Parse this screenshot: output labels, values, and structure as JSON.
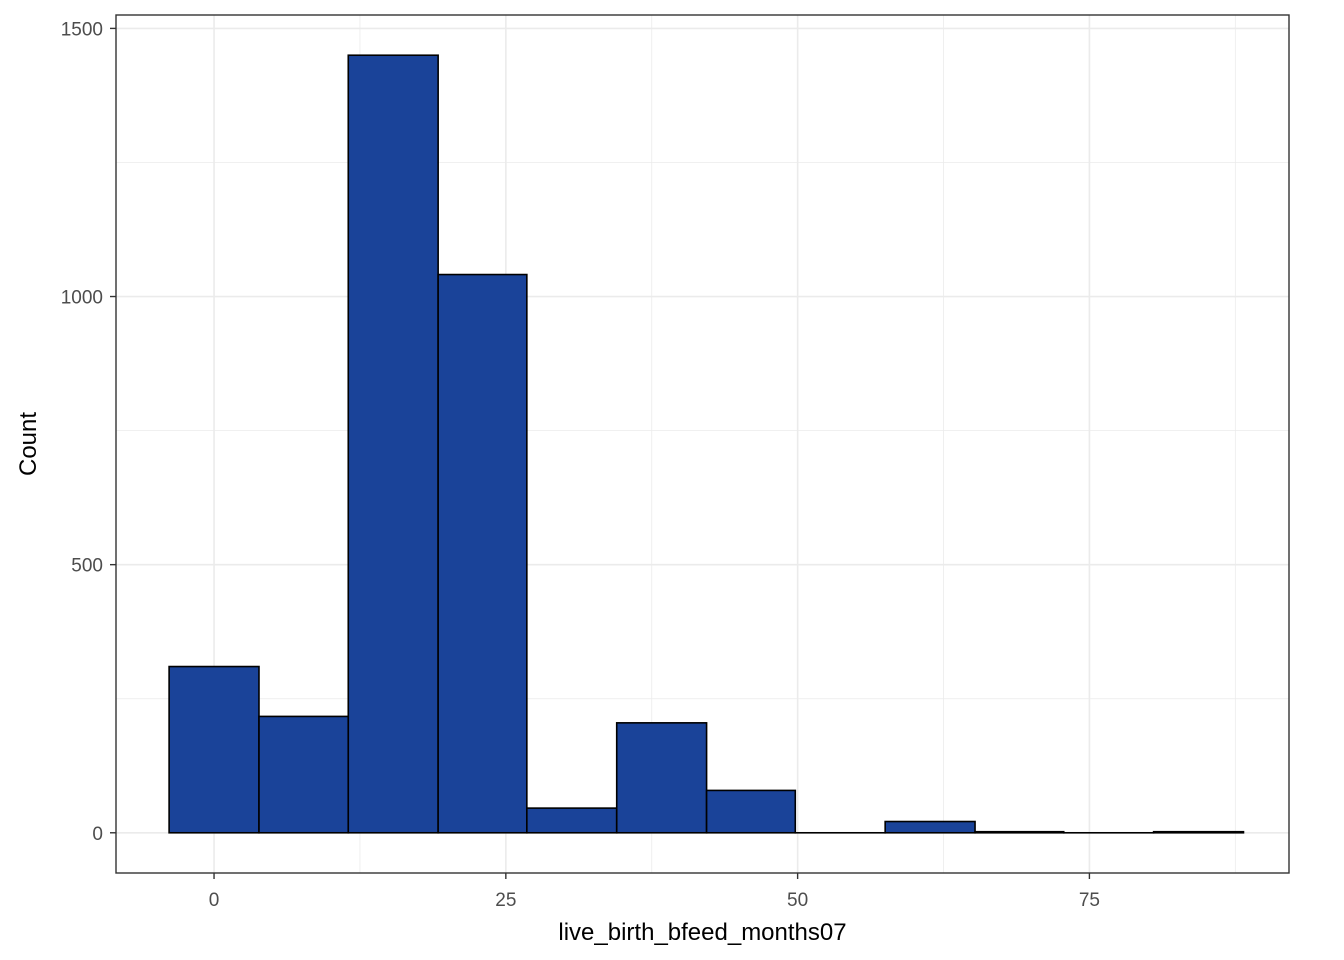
{
  "chart_data": {
    "type": "histogram",
    "xlabel": "live_birth_bfeed_months07",
    "ylabel": "Count",
    "xlim": [
      -8.4,
      92.1
    ],
    "ylim": [
      -75,
      1525
    ],
    "x_ticks": [
      0,
      25,
      50,
      75
    ],
    "x_minor_ticks": [
      12.5,
      37.5,
      62.5,
      87.5
    ],
    "y_ticks": [
      0,
      500,
      1000,
      1500
    ],
    "y_minor_ticks": [
      250,
      750,
      1250
    ],
    "bins": [
      {
        "x0": -3.85,
        "x1": 3.85,
        "count": 310
      },
      {
        "x0": 3.85,
        "x1": 11.5,
        "count": 217
      },
      {
        "x0": 11.5,
        "x1": 19.2,
        "count": 1450
      },
      {
        "x0": 19.2,
        "x1": 26.8,
        "count": 1041
      },
      {
        "x0": 26.8,
        "x1": 34.5,
        "count": 46
      },
      {
        "x0": 34.5,
        "x1": 42.2,
        "count": 205
      },
      {
        "x0": 42.2,
        "x1": 49.8,
        "count": 79
      },
      {
        "x0": 49.8,
        "x1": 57.5,
        "count": 0
      },
      {
        "x0": 57.5,
        "x1": 65.2,
        "count": 21
      },
      {
        "x0": 65.2,
        "x1": 72.8,
        "count": 2
      },
      {
        "x0": 72.8,
        "x1": 80.5,
        "count": 0
      },
      {
        "x0": 80.5,
        "x1": 88.2,
        "count": 2
      }
    ],
    "grid": true,
    "legend": "none",
    "colors": {
      "fill": "#1a4399",
      "stroke": "#000000",
      "grid": "#ebebeb",
      "panel_border": "#333333"
    }
  }
}
